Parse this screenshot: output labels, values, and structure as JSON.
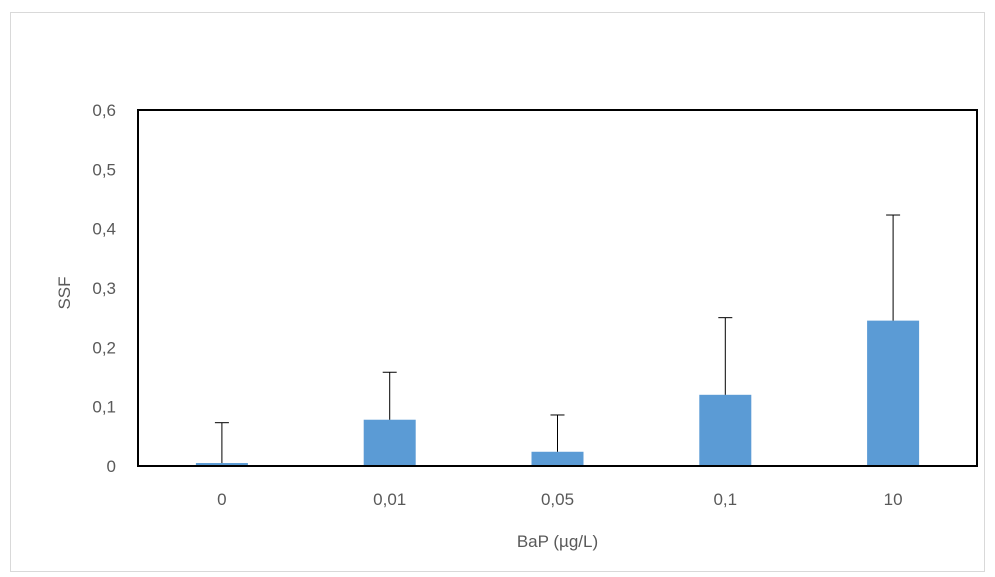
{
  "chart_data": {
    "type": "bar",
    "categories": [
      "0",
      "0,01",
      "0,05",
      "0,1",
      "10"
    ],
    "values": [
      0.005,
      0.078,
      0.024,
      0.12,
      0.245
    ],
    "error_upper": [
      0.068,
      0.08,
      0.062,
      0.13,
      0.178
    ],
    "xlabel": "BaP (µg/L)",
    "ylabel": "SSF",
    "ylim": [
      0,
      0.6
    ],
    "yticks": [
      0,
      0.1,
      0.2,
      0.3,
      0.4,
      0.5,
      0.6
    ],
    "ytick_labels": [
      "0",
      "0,1",
      "0,2",
      "0,3",
      "0,4",
      "0,5",
      "0,6"
    ],
    "bar_color": "#5b9bd5",
    "grid": false,
    "legend": "none"
  }
}
